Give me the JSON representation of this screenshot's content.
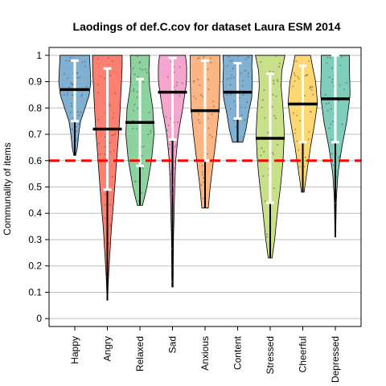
{
  "chart_data": {
    "type": "violin",
    "title": "Laodings of def.C.cov for dataset Laura ESM 2014",
    "xlabel": "",
    "ylabel": "Communality of items",
    "ylim": [
      -0.03,
      1.03
    ],
    "yticks": [
      0,
      0.1,
      0.2,
      0.3,
      0.4,
      0.5,
      0.6,
      0.7,
      0.8,
      0.9,
      1
    ],
    "grid": "horizontal",
    "reference_line": {
      "y": 0.6,
      "color": "#ff0000",
      "style": "dashed"
    },
    "categories": [
      "Happy",
      "Angry",
      "Relaxed",
      "Sad",
      "Anxious",
      "Content",
      "Stressed",
      "Cheerful",
      "Depressed"
    ],
    "series": [
      {
        "category": "Happy",
        "color": "#80b1d3",
        "median": 0.87,
        "whisker_low": 0.75,
        "whisker_high": 0.98,
        "min": 0.62,
        "max": 1.0,
        "tail_low": 0.62,
        "profile": [
          [
            0.62,
            0.03
          ],
          [
            0.65,
            0.08
          ],
          [
            0.7,
            0.12
          ],
          [
            0.75,
            0.18
          ],
          [
            0.8,
            0.32
          ],
          [
            0.85,
            0.45
          ],
          [
            0.9,
            0.5
          ],
          [
            0.95,
            0.48
          ],
          [
            1.0,
            0.46
          ]
        ]
      },
      {
        "category": "Angry",
        "color": "#fb8072",
        "median": 0.72,
        "whisker_low": 0.49,
        "whisker_high": 0.95,
        "min": 0.07,
        "max": 1.0,
        "tail_low": 0.07,
        "profile": [
          [
            0.07,
            0.01
          ],
          [
            0.15,
            0.03
          ],
          [
            0.25,
            0.08
          ],
          [
            0.35,
            0.13
          ],
          [
            0.45,
            0.2
          ],
          [
            0.55,
            0.26
          ],
          [
            0.65,
            0.32
          ],
          [
            0.75,
            0.38
          ],
          [
            0.85,
            0.42
          ],
          [
            0.95,
            0.46
          ],
          [
            1.0,
            0.46
          ]
        ]
      },
      {
        "category": "Relaxed",
        "color": "#8dd3a0",
        "median": 0.745,
        "whisker_low": 0.58,
        "whisker_high": 0.91,
        "min": 0.43,
        "max": 1.0,
        "tail_low": 0.43,
        "profile": [
          [
            0.43,
            0.08
          ],
          [
            0.5,
            0.22
          ],
          [
            0.6,
            0.36
          ],
          [
            0.7,
            0.44
          ],
          [
            0.8,
            0.4
          ],
          [
            0.88,
            0.3
          ],
          [
            0.94,
            0.28
          ],
          [
            1.0,
            0.3
          ]
        ]
      },
      {
        "category": "Sad",
        "color": "#f4a6cf",
        "median": 0.86,
        "whisker_low": 0.68,
        "whisker_high": 0.99,
        "min": 0.12,
        "max": 1.0,
        "tail_low": 0.12,
        "profile": [
          [
            0.12,
            0.02
          ],
          [
            0.3,
            0.03
          ],
          [
            0.4,
            0.05
          ],
          [
            0.5,
            0.07
          ],
          [
            0.6,
            0.1
          ],
          [
            0.7,
            0.18
          ],
          [
            0.8,
            0.32
          ],
          [
            0.9,
            0.44
          ],
          [
            0.97,
            0.44
          ],
          [
            1.0,
            0.4
          ]
        ]
      },
      {
        "category": "Anxious",
        "color": "#fdb683",
        "median": 0.79,
        "whisker_low": 0.6,
        "whisker_high": 0.98,
        "min": 0.42,
        "max": 1.0,
        "tail_low": 0.42,
        "profile": [
          [
            0.42,
            0.1
          ],
          [
            0.5,
            0.16
          ],
          [
            0.6,
            0.26
          ],
          [
            0.7,
            0.36
          ],
          [
            0.8,
            0.44
          ],
          [
            0.9,
            0.46
          ],
          [
            1.0,
            0.46
          ]
        ]
      },
      {
        "category": "Content",
        "color": "#80b1d3",
        "median": 0.86,
        "whisker_low": 0.76,
        "whisker_high": 0.97,
        "min": 0.67,
        "max": 1.0,
        "tail_low": 0.67,
        "profile": [
          [
            0.67,
            0.16
          ],
          [
            0.72,
            0.26
          ],
          [
            0.78,
            0.34
          ],
          [
            0.84,
            0.44
          ],
          [
            0.9,
            0.46
          ],
          [
            0.96,
            0.44
          ],
          [
            1.0,
            0.46
          ]
        ]
      },
      {
        "category": "Stressed",
        "color": "#c9e08a",
        "median": 0.685,
        "whisker_low": 0.44,
        "whisker_high": 0.93,
        "min": 0.23,
        "max": 1.0,
        "tail_low": 0.23,
        "profile": [
          [
            0.23,
            0.06
          ],
          [
            0.3,
            0.14
          ],
          [
            0.4,
            0.22
          ],
          [
            0.5,
            0.32
          ],
          [
            0.6,
            0.4
          ],
          [
            0.7,
            0.44
          ],
          [
            0.8,
            0.4
          ],
          [
            0.88,
            0.34
          ],
          [
            0.94,
            0.36
          ],
          [
            1.0,
            0.46
          ]
        ]
      },
      {
        "category": "Cheerful",
        "color": "#fdd872",
        "median": 0.815,
        "whisker_low": 0.67,
        "whisker_high": 0.96,
        "min": 0.48,
        "max": 1.0,
        "tail_low": 0.48,
        "profile": [
          [
            0.48,
            0.04
          ],
          [
            0.55,
            0.12
          ],
          [
            0.65,
            0.24
          ],
          [
            0.75,
            0.38
          ],
          [
            0.82,
            0.46
          ],
          [
            0.9,
            0.4
          ],
          [
            0.96,
            0.3
          ],
          [
            1.0,
            0.24
          ]
        ]
      },
      {
        "category": "Depressed",
        "color": "#7fcdbb",
        "median": 0.835,
        "whisker_low": 0.67,
        "whisker_high": 1.0,
        "min": 0.31,
        "max": 1.0,
        "tail_low": 0.31,
        "profile": [
          [
            0.31,
            0.01
          ],
          [
            0.45,
            0.03
          ],
          [
            0.55,
            0.08
          ],
          [
            0.65,
            0.2
          ],
          [
            0.75,
            0.36
          ],
          [
            0.85,
            0.46
          ],
          [
            0.95,
            0.44
          ],
          [
            1.0,
            0.44
          ]
        ]
      }
    ]
  }
}
